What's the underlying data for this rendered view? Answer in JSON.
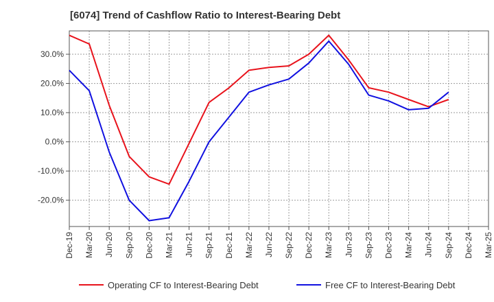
{
  "chart_data": {
    "type": "line",
    "title": "[6074]  Trend of Cashflow Ratio to Interest-Bearing Debt",
    "xlabel": "",
    "ylabel": "",
    "categories": [
      "Dec-19",
      "Mar-20",
      "Jun-20",
      "Sep-20",
      "Dec-20",
      "Mar-21",
      "Jun-21",
      "Sep-21",
      "Dec-21",
      "Mar-22",
      "Jun-22",
      "Sep-22",
      "Dec-22",
      "Mar-23",
      "Jun-23",
      "Sep-23",
      "Dec-23",
      "Mar-24",
      "Jun-24",
      "Sep-24",
      "Dec-24",
      "Mar-25"
    ],
    "ylim": [
      -29,
      38
    ],
    "yticks": [
      -20,
      -10,
      0,
      10,
      20,
      30
    ],
    "ytick_labels": [
      "-20.0%",
      "-10.0%",
      "0.0%",
      "10.0%",
      "20.0%",
      "30.0%"
    ],
    "grid": true,
    "legend_position": "bottom",
    "series": [
      {
        "name": "Operating CF to Interest-Bearing Debt",
        "color": "#e8121b",
        "values": [
          36.5,
          33.5,
          12.5,
          -5.0,
          -12.0,
          -14.5,
          -0.5,
          13.5,
          18.5,
          24.5,
          25.5,
          26.0,
          30.0,
          36.5,
          28.0,
          18.5,
          17.0,
          14.5,
          12.0,
          14.5,
          null,
          null
        ]
      },
      {
        "name": "Free CF to Interest-Bearing Debt",
        "color": "#1010e0",
        "values": [
          24.5,
          17.5,
          -3.5,
          -20.0,
          -27.0,
          -26.0,
          -13.5,
          0.0,
          8.5,
          17.0,
          19.5,
          21.5,
          27.0,
          34.5,
          26.5,
          16.0,
          14.0,
          11.0,
          11.5,
          17.0,
          null,
          null
        ]
      }
    ]
  }
}
